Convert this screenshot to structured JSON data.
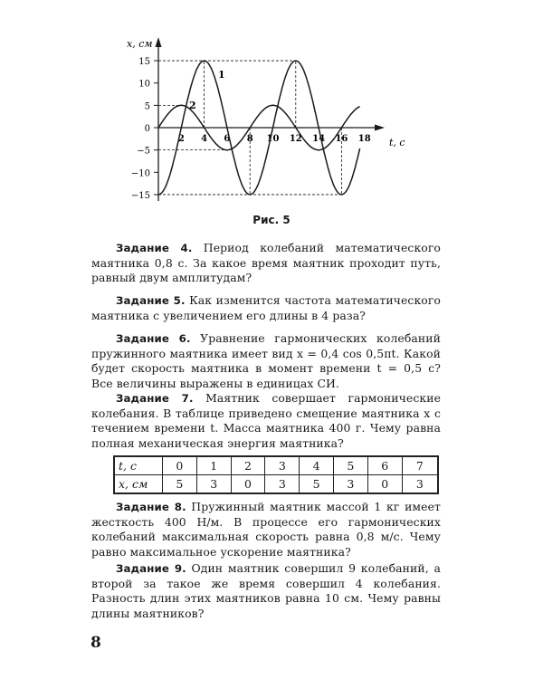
{
  "chart_data": {
    "type": "line",
    "title": "",
    "xlabel": "t, с",
    "ylabel": "x, см",
    "xlim": [
      0,
      18
    ],
    "ylim": [
      -15,
      15
    ],
    "x_ticks": [
      "2",
      "4",
      "6",
      "8",
      "10",
      "12",
      "14",
      "16",
      "18"
    ],
    "y_ticks": [
      "15",
      "10",
      "5",
      "0",
      "−5",
      "−10",
      "−15"
    ],
    "grid": false,
    "series": [
      {
        "name": "1",
        "formula": "x = -15 cos(πt/4)",
        "amplitude": 15,
        "period": 8,
        "t_range": [
          0,
          17.6
        ],
        "points": [
          [
            0,
            -15
          ],
          [
            2,
            0
          ],
          [
            4,
            15
          ],
          [
            6,
            0
          ],
          [
            8,
            -15
          ],
          [
            10,
            0
          ],
          [
            12,
            15
          ],
          [
            14,
            0
          ],
          [
            16,
            -15
          ],
          [
            17.6,
            -4.6
          ]
        ]
      },
      {
        "name": "2",
        "formula": "x = 5 sin(πt/4)",
        "amplitude": 5,
        "period": 8,
        "t_range": [
          0,
          17.6
        ],
        "points": [
          [
            0,
            0
          ],
          [
            2,
            5
          ],
          [
            4,
            0
          ],
          [
            6,
            -5
          ],
          [
            8,
            0
          ],
          [
            10,
            5
          ],
          [
            12,
            0
          ],
          [
            14,
            -5
          ],
          [
            16,
            0
          ],
          [
            17.6,
            4.8
          ]
        ]
      }
    ],
    "guides": {
      "horizontal": [
        [
          15,
          12
        ],
        [
          5,
          2
        ],
        [
          -5,
          6
        ],
        [
          -15,
          16
        ]
      ],
      "vertical": [
        [
          4,
          15
        ],
        [
          8,
          -15
        ],
        [
          12,
          15
        ],
        [
          16,
          -15
        ]
      ]
    },
    "color": "#1a1a1a"
  },
  "caption": "Рис. 5",
  "tasks": [
    {
      "label": "Задание 4.",
      "text": " Период колебаний математического маятника 0,8 с. За какое время маятник проходит путь, равный двум амплитудам?"
    },
    {
      "label": "Задание 5.",
      "text": " Как изменится частота математического маятника с увеличением его длины в 4 раза?"
    },
    {
      "label": "Задание 6.",
      "text": " Уравнение гармонических колебаний пружинного маятника имеет вид x = 0,4 cos 0,5πt. Какой будет скорость маятника в момент времени t = 0,5 с? Все величины выражены в единицах СИ."
    },
    {
      "label": "Задание 7.",
      "text": " Маятник совершает гармонические колебания. В таблице приведено смещение маятника x с течением времени t. Масса маятника 400 г. Чему равна полная механическая энергия маятника?"
    },
    {
      "label": "Задание 8.",
      "text": " Пружинный маятник массой 1 кг имеет жесткость 400 Н/м. В процессе его гармонических колебаний максимальная скорость равна 0,8 м/с. Чему равно максимальное ускорение маятника?"
    },
    {
      "label": "Задание 9.",
      "text": " Один маятник совершил 9 колебаний, а второй за такое же время совершил 4 колебания. Разность длин этих маятников равна 10 см. Чему равны длины маятников?"
    }
  ],
  "table": {
    "rows": [
      {
        "header": "t, с",
        "cells": [
          "0",
          "1",
          "2",
          "3",
          "4",
          "5",
          "6",
          "7"
        ]
      },
      {
        "header": "x, см",
        "cells": [
          "5",
          "3",
          "0",
          "3",
          "5",
          "3",
          "0",
          "3"
        ]
      }
    ]
  },
  "page_number": "8"
}
